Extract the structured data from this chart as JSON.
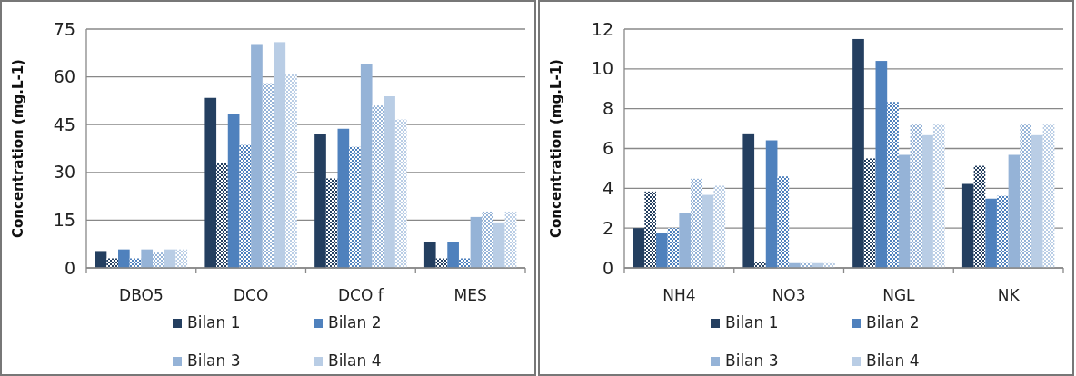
{
  "chart_data": [
    {
      "type": "bar",
      "ylabel": "Concentration (mg.L-1)",
      "categories": [
        "DBO5",
        "DCO",
        "DCO f",
        "MES"
      ],
      "ylim": [
        0,
        75
      ],
      "yticks": [
        0,
        15,
        30,
        45,
        60,
        75
      ],
      "grid": "y",
      "legend": "bottom",
      "series": [
        {
          "name": "Bilan 1",
          "color": "#243f60",
          "values": [
            5.3,
            53.4,
            42,
            8.1
          ]
        },
        {
          "name": null,
          "color": "#243f60",
          "values": [
            3,
            33,
            28.1,
            3
          ]
        },
        {
          "name": "Bilan 2",
          "color": "#4f81bd",
          "values": [
            5.8,
            48.3,
            43.7,
            8.1
          ]
        },
        {
          "name": null,
          "color": "#4f81bd",
          "values": [
            3,
            38.6,
            38,
            3
          ]
        },
        {
          "name": "Bilan 3",
          "color": "#95b3d7",
          "values": [
            5.8,
            70.3,
            64.1,
            16
          ]
        },
        {
          "name": null,
          "color": "#95b3d7",
          "values": [
            4.8,
            58,
            51,
            17.7
          ]
        },
        {
          "name": "Bilan 4",
          "color": "#b9cde5",
          "values": [
            5.8,
            70.9,
            53.9,
            14.3
          ]
        },
        {
          "name": null,
          "color": "#b9cde5",
          "values": [
            5.8,
            60.9,
            46.6,
            17.7
          ]
        }
      ]
    },
    {
      "type": "bar",
      "ylabel": "Concentration (mg.L-1)",
      "categories": [
        "NH4",
        "NO3",
        "NGL",
        "NK"
      ],
      "ylim": [
        0,
        12
      ],
      "yticks": [
        0,
        2,
        4,
        6,
        8,
        10,
        12
      ],
      "grid": "y",
      "legend": "bottom",
      "series": [
        {
          "name": "Bilan 1",
          "color": "#243f60",
          "values": [
            2,
            6.76,
            11.5,
            4.22
          ]
        },
        {
          "name": null,
          "color": "#243f60",
          "values": [
            3.84,
            0.3,
            5.5,
            5.13
          ]
        },
        {
          "name": "Bilan 2",
          "color": "#4f81bd",
          "values": [
            1.77,
            6.41,
            10.4,
            3.48
          ]
        },
        {
          "name": null,
          "color": "#4f81bd",
          "values": [
            2,
            4.6,
            8.34,
            3.62
          ]
        },
        {
          "name": "Bilan 3",
          "color": "#95b3d7",
          "values": [
            2.76,
            0.24,
            5.68,
            5.68
          ]
        },
        {
          "name": null,
          "color": "#95b3d7",
          "values": [
            4.48,
            0.24,
            7.2,
            7.2
          ]
        },
        {
          "name": "Bilan 4",
          "color": "#b9cde5",
          "values": [
            3.67,
            0.24,
            6.67,
            6.67
          ]
        },
        {
          "name": null,
          "color": "#b9cde5",
          "values": [
            4.13,
            0.24,
            7.2,
            7.2
          ]
        }
      ]
    }
  ]
}
